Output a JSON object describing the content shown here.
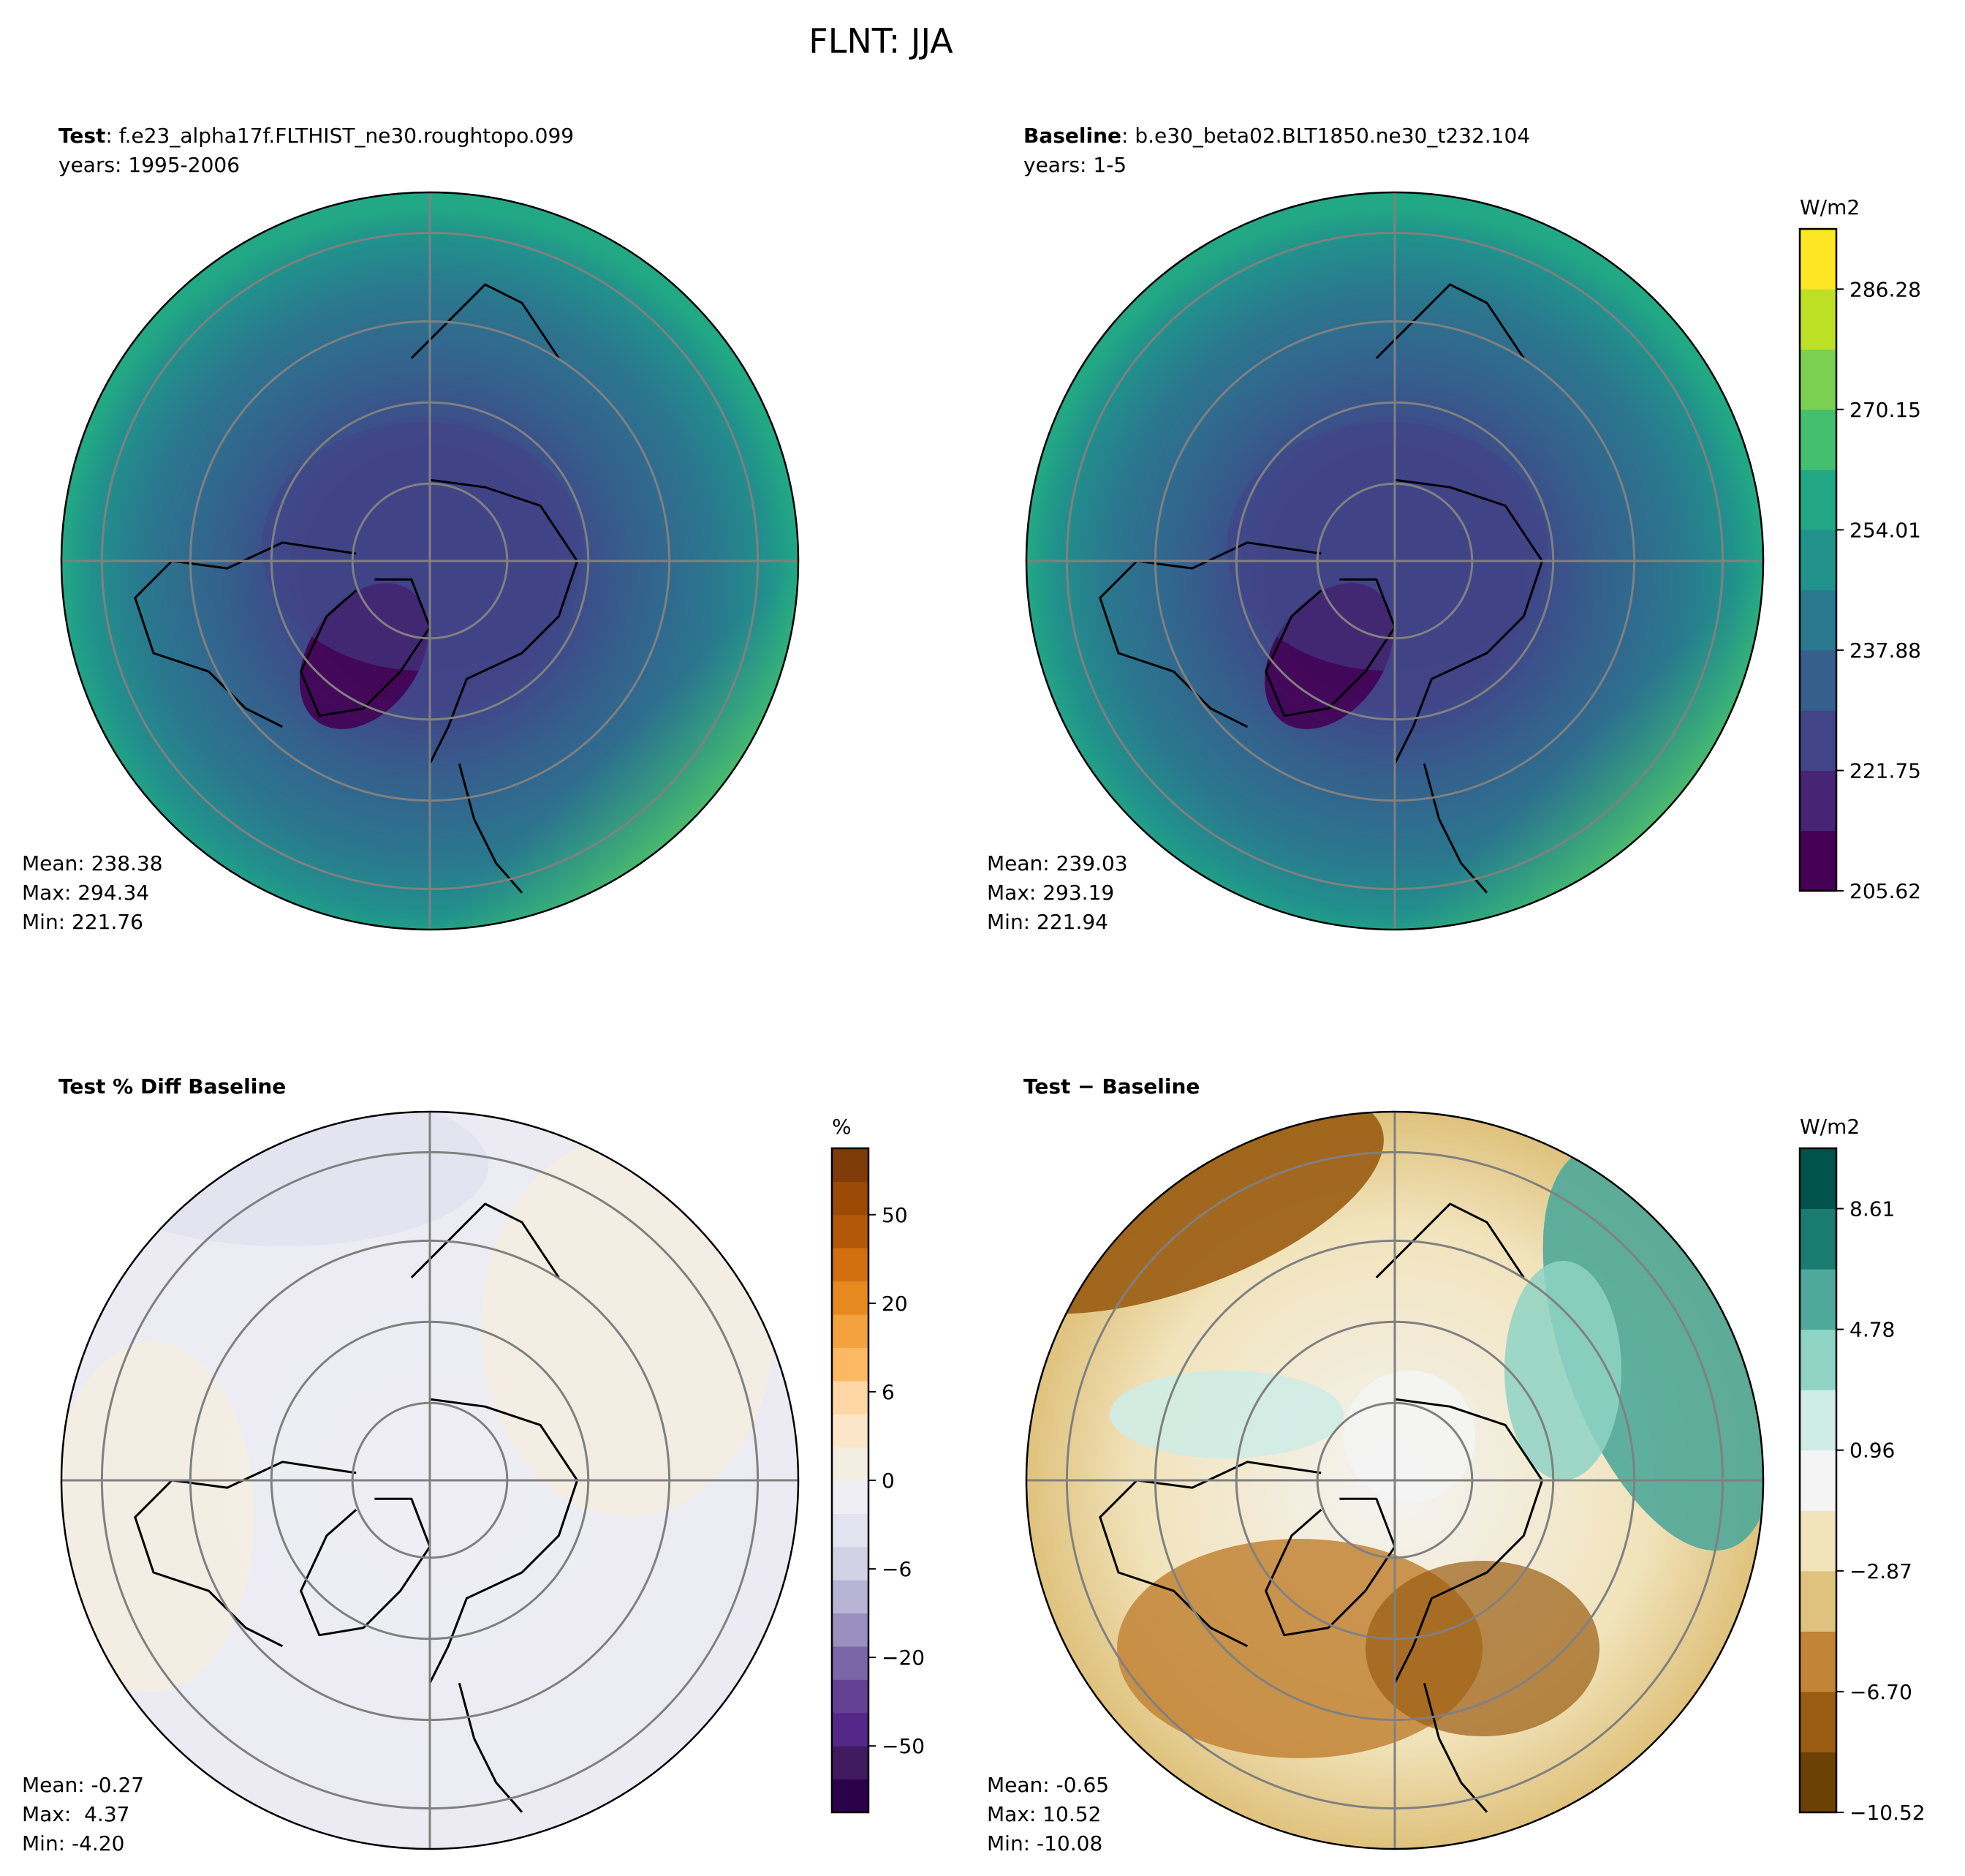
{
  "figure": {
    "title": "FLNT: JJA"
  },
  "chart_data": [
    {
      "type": "heatmap",
      "projection": "north-polar-stereographic",
      "panel_bold": "Test",
      "panel_rest": ": f.e23_alpha17f.FLTHIST_ne30.roughtopo.099",
      "years": "years: 1995-2006",
      "stats": [
        "Mean: 238.38",
        "Max: 294.34",
        "Min: 221.76"
      ],
      "palette": "viridis",
      "shares_colorbar_with_next": true
    },
    {
      "type": "heatmap",
      "projection": "north-polar-stereographic",
      "panel_bold": "Baseline",
      "panel_rest": ": b.e30_beta02.BLT1850.ne30_t232.104",
      "years": "years: 1-5",
      "stats": [
        "Mean: 239.03",
        "Max: 293.19",
        "Min: 221.94"
      ],
      "palette": "viridis",
      "colorbar": {
        "unit": "W/m2",
        "ticks": [
          "286.28",
          "270.15",
          "254.01",
          "237.88",
          "221.75",
          "205.62"
        ],
        "colors": [
          "#440154",
          "#482475",
          "#414487",
          "#355f8d",
          "#2a788e",
          "#21918c",
          "#22a884",
          "#44bf70",
          "#7ad151",
          "#bddf26",
          "#fde725"
        ]
      }
    },
    {
      "type": "heatmap",
      "projection": "north-polar-stereographic",
      "panel_bold": "Test % Diff Baseline",
      "panel_rest": "",
      "years": "",
      "stats": [
        "Mean: -0.27",
        "Max:  4.37",
        "Min: -4.20"
      ],
      "palette": "PuOr_r",
      "colorbar": {
        "unit": "%",
        "ticks": [
          "50",
          "20",
          "6",
          "0",
          "−6",
          "−20",
          "−50"
        ],
        "colors": [
          "#2d004b",
          "#3f1a5f",
          "#542788",
          "#644095",
          "#7a66a8",
          "#9b8fbf",
          "#b8b4d6",
          "#d2d1e6",
          "#e3e3ef",
          "#eeeef4",
          "#f4ede2",
          "#fbe6c9",
          "#fed7a4",
          "#fdb863",
          "#f4a23d",
          "#e68a1f",
          "#d0700f",
          "#b35806",
          "#9a4a05",
          "#7f3b08"
        ]
      }
    },
    {
      "type": "heatmap",
      "projection": "north-polar-stereographic",
      "panel_bold": "Test − Baseline",
      "panel_rest": "",
      "years": "",
      "stats": [
        "Mean: -0.65",
        "Max: 10.52",
        "Min: -10.08"
      ],
      "palette": "BrBG",
      "colorbar": {
        "unit": "W/m2",
        "ticks": [
          "8.61",
          "4.78",
          "0.96",
          "−2.87",
          "−6.70",
          "−10.52"
        ],
        "colors": [
          "#6b4104",
          "#9a5c12",
          "#c28436",
          "#dfc27d",
          "#f1e3bb",
          "#f4f4f4",
          "#cfece6",
          "#8fd3c4",
          "#4fa99a",
          "#1a7b71",
          "#01524a"
        ]
      }
    }
  ]
}
